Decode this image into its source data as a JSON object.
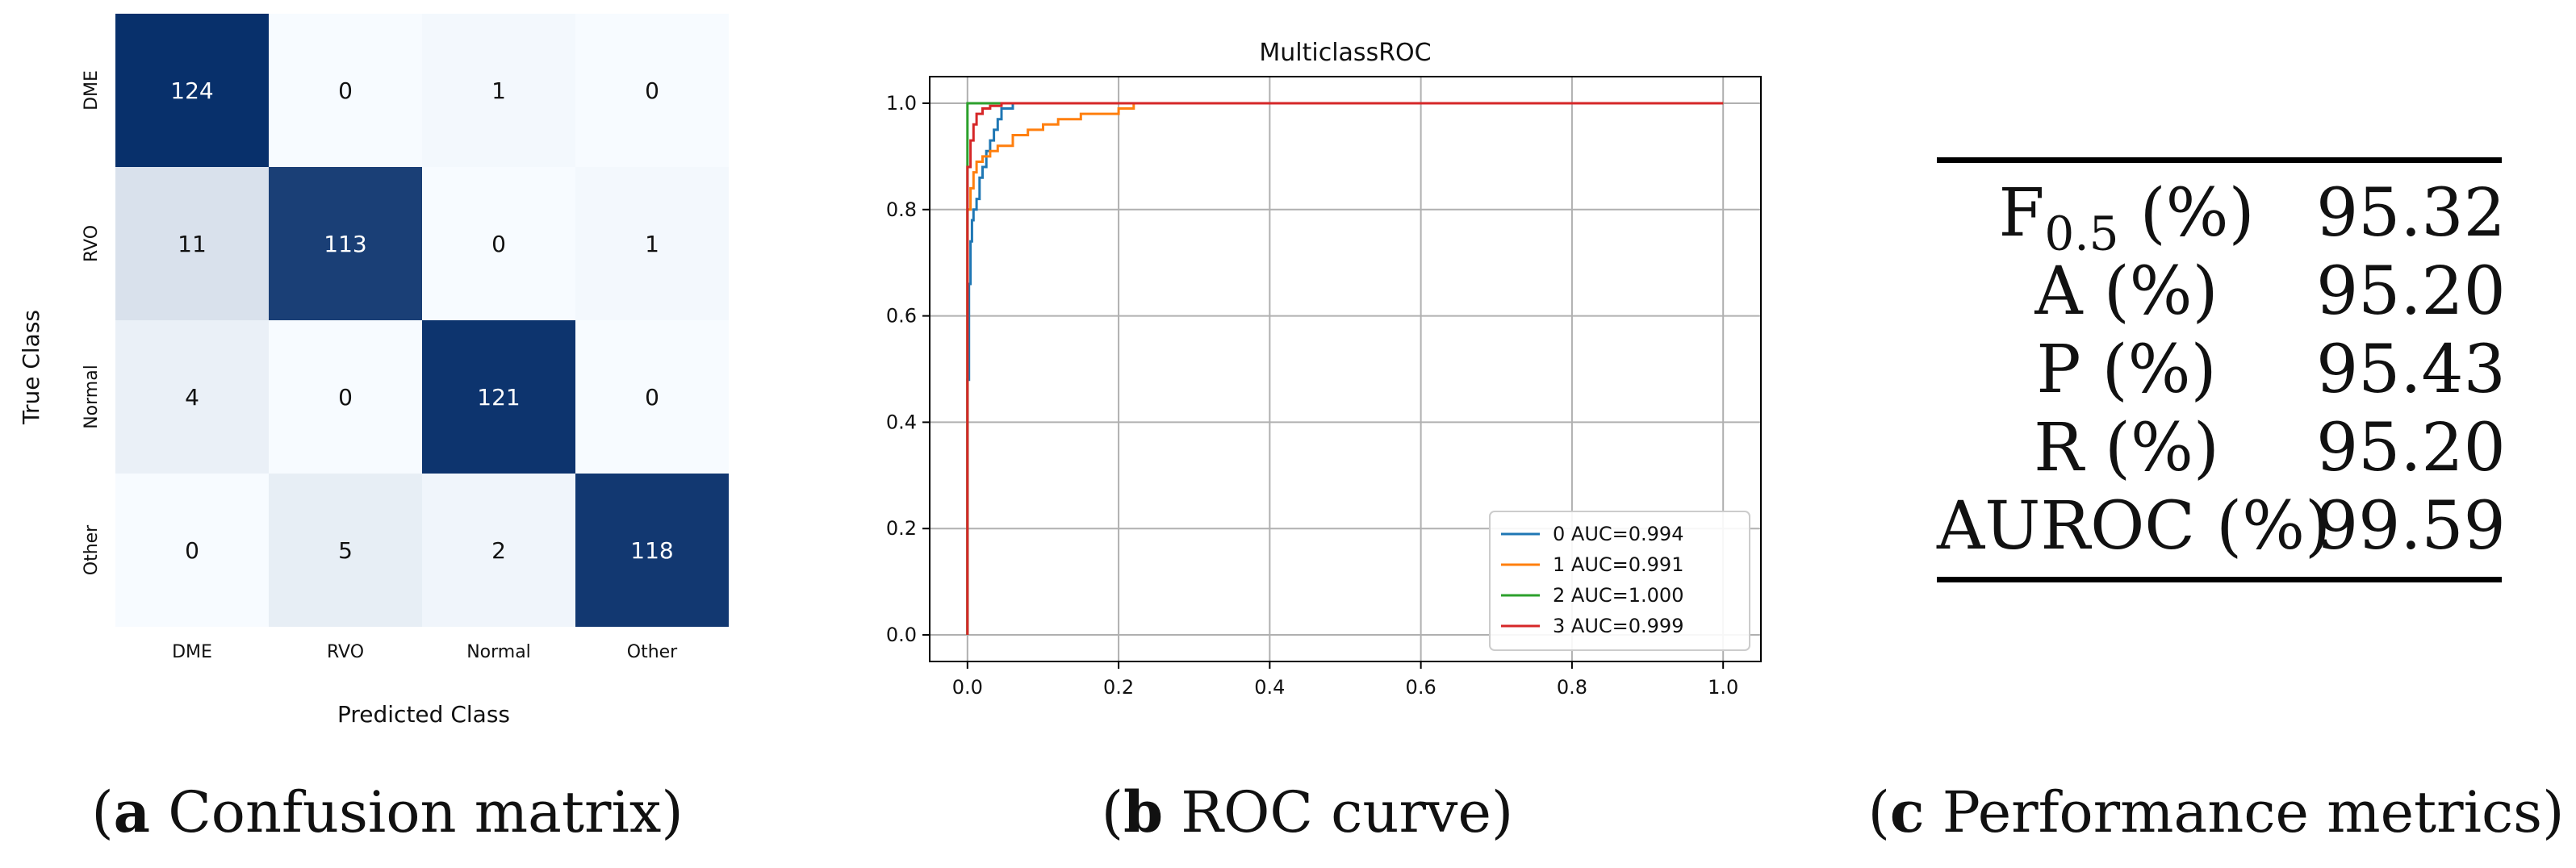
{
  "captions": {
    "a": {
      "letter": "a",
      "text": " Confusion matrix"
    },
    "b": {
      "letter": "b",
      "text": " ROC curve"
    },
    "c": {
      "letter": "c",
      "text": " Performance metrics"
    }
  },
  "metrics": [
    {
      "label": "F0.5 (%)",
      "value": "95.32"
    },
    {
      "label": "A (%)",
      "value": "95.20"
    },
    {
      "label": "P (%)",
      "value": "95.43"
    },
    {
      "label": "R (%)",
      "value": "95.20"
    },
    {
      "label": "AUROC (%)",
      "value": "99.59"
    }
  ],
  "chart_data": [
    {
      "type": "heatmap",
      "title": "",
      "xlabel": "Predicted Class",
      "ylabel": "True Class",
      "x_categories": [
        "DME",
        "RVO",
        "Normal",
        "Other"
      ],
      "y_categories": [
        "DME",
        "RVO",
        "Normal",
        "Other"
      ],
      "values": [
        [
          124,
          0,
          1,
          0
        ],
        [
          11,
          113,
          0,
          1
        ],
        [
          4,
          0,
          121,
          0
        ],
        [
          0,
          5,
          2,
          118
        ]
      ],
      "colormap": "Blues",
      "vmax": 124
    },
    {
      "type": "line",
      "title": "MulticlassROC",
      "xlabel": "",
      "ylabel": "",
      "xlim": [
        -0.05,
        1.05
      ],
      "ylim": [
        -0.05,
        1.05
      ],
      "xticks": [
        "0.0",
        "0.2",
        "0.4",
        "0.6",
        "0.8",
        "1.0"
      ],
      "yticks": [
        "0.0",
        "0.2",
        "0.4",
        "0.6",
        "0.8",
        "1.0"
      ],
      "grid": true,
      "legend_position": "lower-right",
      "series": [
        {
          "name": "0 AUC=0.994",
          "color": "#1f77b4",
          "x": [
            0,
            0,
            0.002,
            0.002,
            0.004,
            0.004,
            0.006,
            0.006,
            0.008,
            0.008,
            0.012,
            0.012,
            0.016,
            0.016,
            0.02,
            0.02,
            0.025,
            0.025,
            0.03,
            0.03,
            0.035,
            0.035,
            0.04,
            0.04,
            0.045,
            0.045,
            0.06,
            0.06,
            1.0
          ],
          "y": [
            0,
            0.48,
            0.48,
            0.66,
            0.66,
            0.74,
            0.74,
            0.78,
            0.78,
            0.8,
            0.8,
            0.82,
            0.82,
            0.86,
            0.86,
            0.88,
            0.88,
            0.91,
            0.91,
            0.93,
            0.93,
            0.95,
            0.95,
            0.97,
            0.97,
            0.99,
            0.99,
            1.0,
            1.0
          ]
        },
        {
          "name": "1 AUC=0.991",
          "color": "#ff7f0e",
          "x": [
            0,
            0,
            0.004,
            0.004,
            0.008,
            0.008,
            0.012,
            0.012,
            0.02,
            0.02,
            0.03,
            0.03,
            0.04,
            0.04,
            0.06,
            0.06,
            0.08,
            0.08,
            0.1,
            0.1,
            0.12,
            0.12,
            0.15,
            0.15,
            0.2,
            0.2,
            0.22,
            0.22,
            1.0
          ],
          "y": [
            0,
            0.8,
            0.8,
            0.84,
            0.84,
            0.87,
            0.87,
            0.89,
            0.89,
            0.9,
            0.9,
            0.91,
            0.91,
            0.92,
            0.92,
            0.94,
            0.94,
            0.95,
            0.95,
            0.96,
            0.96,
            0.97,
            0.97,
            0.98,
            0.98,
            0.99,
            0.99,
            1.0,
            1.0
          ]
        },
        {
          "name": "2 AUC=1.000",
          "color": "#2ca02c",
          "x": [
            0,
            0,
            0.06,
            1.0
          ],
          "y": [
            0,
            1.0,
            1.0,
            1.0
          ]
        },
        {
          "name": "3 AUC=0.999",
          "color": "#d62728",
          "x": [
            0,
            0,
            0.004,
            0.004,
            0.008,
            0.008,
            0.012,
            0.012,
            0.02,
            0.02,
            0.03,
            0.03,
            0.045,
            0.045,
            1.0
          ],
          "y": [
            0,
            0.88,
            0.88,
            0.93,
            0.93,
            0.96,
            0.96,
            0.98,
            0.98,
            0.99,
            0.99,
            0.995,
            0.995,
            1.0,
            1.0
          ]
        }
      ]
    }
  ]
}
